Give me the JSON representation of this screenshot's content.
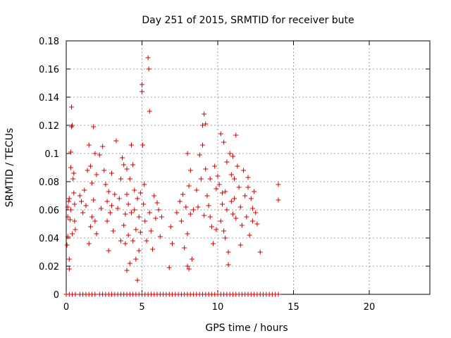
{
  "chart_data": {
    "type": "scatter",
    "title": "Day 251 of 2015, SRMTID for receiver bute",
    "xlabel": "GPS time / hours",
    "ylabel": "SRMTID / TECUs",
    "xlim": [
      0,
      24
    ],
    "ylim": [
      0,
      0.18
    ],
    "xticks": [
      0,
      5,
      10,
      15,
      20
    ],
    "xtick_labels": [
      "0",
      "5",
      "10",
      "15",
      "20"
    ],
    "yticks": [
      0,
      0.02,
      0.04,
      0.06,
      0.08,
      0.1,
      0.12,
      0.14,
      0.16,
      0.18
    ],
    "ytick_labels": [
      "0",
      "0.02",
      "0.04",
      "0.06",
      "0.08",
      "0.1",
      "0.12",
      "0.14",
      "0.16",
      "0.18"
    ],
    "grid": true,
    "marker": "+",
    "color": "#cc0000",
    "series": [
      {
        "name": "SRMTID",
        "points": [
          [
            0.05,
            0.035
          ],
          [
            0.1,
            0.041
          ],
          [
            0.1,
            0.055
          ],
          [
            0.15,
            0.066
          ],
          [
            0.2,
            0.025
          ],
          [
            0.2,
            0.018
          ],
          [
            0.25,
            0.053
          ],
          [
            0.3,
            0.06
          ],
          [
            0.3,
            0.101
          ],
          [
            0.35,
            0.119
          ],
          [
            0.35,
            0.133
          ],
          [
            0.4,
            0.12
          ],
          [
            0.4,
            0.043
          ],
          [
            0.45,
            0.082
          ],
          [
            0.5,
            0.086
          ],
          [
            0.5,
            0.072
          ],
          [
            0.55,
            0.064
          ],
          [
            0.55,
            0.052
          ],
          [
            0.6,
            0.046
          ],
          [
            0.2,
            0.068
          ],
          [
            0.1,
            0.062
          ],
          [
            0.3,
            0.09
          ],
          [
            0.9,
            0.07
          ],
          [
            1.0,
            0.066
          ],
          [
            1.1,
            0.058
          ],
          [
            1.2,
            0.074
          ],
          [
            1.3,
            0.063
          ],
          [
            1.4,
            0.088
          ],
          [
            1.5,
            0.036
          ],
          [
            1.5,
            0.106
          ],
          [
            1.6,
            0.091
          ],
          [
            1.7,
            0.055
          ],
          [
            1.7,
            0.079
          ],
          [
            1.8,
            0.119
          ],
          [
            1.9,
            0.1
          ],
          [
            1.9,
            0.052
          ],
          [
            2.0,
            0.085
          ],
          [
            2.0,
            0.043
          ],
          [
            1.6,
            0.048
          ],
          [
            1.8,
            0.067
          ],
          [
            2.2,
            0.099
          ],
          [
            2.3,
            0.061
          ],
          [
            2.4,
            0.105
          ],
          [
            2.5,
            0.088
          ],
          [
            2.6,
            0.078
          ],
          [
            2.7,
            0.066
          ],
          [
            2.7,
            0.052
          ],
          [
            2.8,
            0.073
          ],
          [
            2.8,
            0.031
          ],
          [
            2.9,
            0.058
          ],
          [
            3.0,
            0.063
          ],
          [
            3.0,
            0.086
          ],
          [
            3.1,
            0.045
          ],
          [
            3.2,
            0.071
          ],
          [
            3.3,
            0.109
          ],
          [
            3.4,
            0.061
          ],
          [
            3.5,
            0.068
          ],
          [
            3.6,
            0.082
          ],
          [
            3.6,
            0.038
          ],
          [
            3.7,
            0.097
          ],
          [
            3.8,
            0.092
          ],
          [
            3.8,
            0.049
          ],
          [
            3.9,
            0.057
          ],
          [
            3.9,
            0.036
          ],
          [
            4.0,
            0.089
          ],
          [
            4.0,
            0.071
          ],
          [
            4.0,
            0.017
          ],
          [
            4.1,
            0.064
          ],
          [
            4.1,
            0.042
          ],
          [
            4.2,
            0.082
          ],
          [
            4.2,
            0.022
          ],
          [
            4.3,
            0.106
          ],
          [
            4.3,
            0.058
          ],
          [
            4.4,
            0.092
          ],
          [
            4.4,
            0.038
          ],
          [
            4.5,
            0.06
          ],
          [
            4.5,
            0.074
          ],
          [
            4.6,
            0.046
          ],
          [
            4.6,
            0.025
          ],
          [
            4.7,
            0.068
          ],
          [
            4.7,
            0.01
          ],
          [
            4.8,
            0.055
          ],
          [
            4.8,
            0.031
          ],
          [
            4.9,
            0.072
          ],
          [
            4.9,
            0.044
          ],
          [
            5.0,
            0.149
          ],
          [
            5.0,
            0.144
          ],
          [
            5.05,
            0.106
          ],
          [
            5.1,
            0.064
          ],
          [
            5.15,
            0.078
          ],
          [
            5.2,
            0.052
          ],
          [
            5.3,
            0.038
          ],
          [
            5.4,
            0.168
          ],
          [
            5.45,
            0.16
          ],
          [
            5.5,
            0.13
          ],
          [
            5.5,
            0.058
          ],
          [
            5.6,
            0.045
          ],
          [
            5.7,
            0.032
          ],
          [
            5.8,
            0.07
          ],
          [
            5.9,
            0.054
          ],
          [
            6.0,
            0.065
          ],
          [
            6.1,
            0.06
          ],
          [
            6.2,
            0.041
          ],
          [
            6.3,
            0.055
          ],
          [
            6.8,
            0.019
          ],
          [
            6.9,
            0.048
          ],
          [
            7.0,
            0.036
          ],
          [
            7.3,
            0.058
          ],
          [
            7.5,
            0.066
          ],
          [
            7.6,
            0.052
          ],
          [
            7.7,
            0.071
          ],
          [
            7.8,
            0.033
          ],
          [
            7.9,
            0.062
          ],
          [
            8.0,
            0.1
          ],
          [
            8.0,
            0.043
          ],
          [
            8.0,
            0.02
          ],
          [
            8.1,
            0.077
          ],
          [
            8.1,
            0.018
          ],
          [
            8.2,
            0.088
          ],
          [
            8.2,
            0.057
          ],
          [
            8.3,
            0.025
          ],
          [
            8.4,
            0.06
          ],
          [
            8.6,
            0.074
          ],
          [
            8.7,
            0.062
          ],
          [
            8.8,
            0.099
          ],
          [
            8.9,
            0.082
          ],
          [
            9.0,
            0.12
          ],
          [
            9.0,
            0.106
          ],
          [
            9.1,
            0.128
          ],
          [
            9.1,
            0.056
          ],
          [
            9.2,
            0.121
          ],
          [
            9.2,
            0.089
          ],
          [
            9.3,
            0.07
          ],
          [
            9.4,
            0.063
          ],
          [
            9.5,
            0.055
          ],
          [
            9.6,
            0.048
          ],
          [
            9.7,
            0.036
          ],
          [
            9.8,
            0.091
          ],
          [
            9.9,
            0.075
          ],
          [
            10.0,
            0.084
          ],
          [
            10.1,
            0.078
          ],
          [
            10.2,
            0.114
          ],
          [
            10.2,
            0.052
          ],
          [
            10.3,
            0.064
          ],
          [
            10.4,
            0.108
          ],
          [
            10.4,
            0.045
          ],
          [
            10.5,
            0.073
          ],
          [
            10.6,
            0.094
          ],
          [
            10.6,
            0.06
          ],
          [
            10.7,
            0.021
          ],
          [
            10.7,
            0.03
          ],
          [
            10.8,
            0.1
          ],
          [
            10.9,
            0.066
          ],
          [
            11.0,
            0.098
          ],
          [
            11.0,
            0.057
          ],
          [
            11.1,
            0.082
          ],
          [
            11.1,
            0.068
          ],
          [
            11.2,
            0.113
          ],
          [
            11.3,
            0.091
          ],
          [
            11.4,
            0.076
          ],
          [
            11.5,
            0.062
          ],
          [
            11.6,
            0.049
          ],
          [
            11.7,
            0.088
          ],
          [
            11.8,
            0.07
          ],
          [
            11.9,
            0.055
          ],
          [
            12.0,
            0.083
          ],
          [
            12.1,
            0.042
          ],
          [
            12.2,
            0.068
          ],
          [
            12.3,
            0.061
          ],
          [
            12.4,
            0.073
          ],
          [
            12.5,
            0.058
          ],
          [
            12.6,
            0.05
          ],
          [
            12.8,
            0.03
          ],
          [
            10.5,
            0.04
          ],
          [
            10.3,
            0.072
          ],
          [
            9.5,
            0.082
          ],
          [
            11.5,
            0.035
          ],
          [
            12.0,
            0.076
          ],
          [
            11.2,
            0.054
          ],
          [
            10.9,
            0.085
          ],
          [
            9.9,
            0.046
          ],
          [
            12.3,
            0.052
          ],
          [
            14.0,
            0.078
          ],
          [
            14.0,
            0.067
          ]
        ]
      }
    ],
    "baseline_zero_x": [
      0.0,
      0.2,
      0.4,
      0.6,
      0.9,
      1.1,
      1.3,
      1.5,
      1.7,
      1.9,
      2.2,
      2.4,
      2.6,
      2.8,
      3.0,
      3.2,
      3.4,
      3.6,
      3.8,
      4.0,
      4.2,
      4.4,
      4.6,
      4.8,
      5.0,
      5.2,
      5.4,
      5.6,
      5.8,
      6.0,
      6.2,
      6.4,
      6.6,
      6.8,
      7.0,
      7.2,
      7.4,
      7.6,
      7.8,
      8.0,
      8.2,
      8.4,
      8.6,
      8.8,
      9.0,
      9.2,
      9.4,
      9.6,
      9.8,
      10.0,
      10.2,
      10.4,
      10.6,
      10.8,
      11.0,
      11.2,
      11.4,
      11.6,
      11.8,
      12.0,
      12.2,
      12.4,
      12.6,
      12.8,
      13.0,
      13.2,
      13.4,
      13.6,
      13.8,
      14.0
    ]
  }
}
